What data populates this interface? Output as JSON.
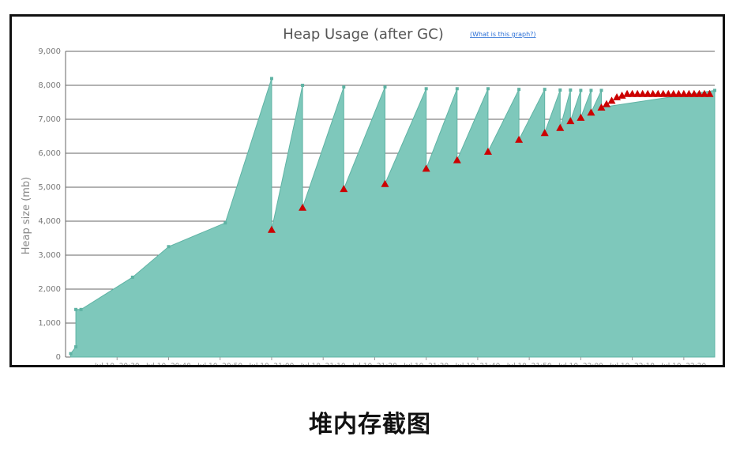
{
  "caption": "堆内存截图",
  "colors": {
    "area_fill": "#7ec8bb",
    "area_stroke": "#5fb3a4",
    "marker": "#cc0000",
    "grid": "#666666"
  },
  "chart_data": {
    "type": "area",
    "title": "Heap Usage (after GC)",
    "help_link": "(What is this graph?)",
    "xlabel": "",
    "ylabel": "Heap size (mb)",
    "ylim": [
      0,
      9000
    ],
    "yticks": [
      "0",
      "1,000",
      "2,000",
      "3,000",
      "4,000",
      "5,000",
      "6,000",
      "7,000",
      "8,000",
      "9,000"
    ],
    "xlim": [
      "20:20",
      "22:26"
    ],
    "xticks": [
      "Jul 10, 20:30",
      "Jul 10, 20:40",
      "Jul 10, 20:50",
      "Jul 10, 21:00",
      "Jul 10, 21:10",
      "Jul 10, 21:20",
      "Jul 10, 21:30",
      "Jul 10, 21:40",
      "Jul 10, 21:50",
      "Jul 10, 22:00",
      "Jul 10, 22:10",
      "Jul 10, 22:20"
    ],
    "grid": true,
    "legend": "none",
    "series": [
      {
        "type": "area",
        "x": [
          "20:21",
          "20:22",
          "20:22",
          "20:23",
          "20:33",
          "20:40",
          "20:51",
          "21:00",
          "21:00",
          "21:06",
          "21:06",
          "21:14",
          "21:14",
          "21:22",
          "21:22",
          "21:30",
          "21:30",
          "21:36",
          "21:36",
          "21:42",
          "21:42",
          "21:48",
          "21:48",
          "21:53",
          "21:53",
          "21:56",
          "21:56",
          "21:58",
          "21:58",
          "22:00",
          "22:00",
          "22:02",
          "22:02",
          "22:04",
          "22:04",
          "22:26"
        ],
        "y": [
          100,
          300,
          1400,
          1400,
          2350,
          3250,
          3950,
          8200,
          3750,
          8000,
          4400,
          7950,
          4950,
          7950,
          5100,
          7900,
          5550,
          7900,
          5800,
          7900,
          6050,
          7880,
          6400,
          7880,
          6600,
          7860,
          6750,
          7860,
          6950,
          7850,
          7050,
          7850,
          7200,
          7850,
          7350,
          7850
        ]
      },
      {
        "type": "scatter",
        "marker": "triangle",
        "x": [
          "21:00",
          "21:06",
          "21:14",
          "21:22",
          "21:30",
          "21:36",
          "21:42",
          "21:48",
          "21:53",
          "21:56",
          "21:58",
          "22:00",
          "22:02",
          "22:04",
          "22:05",
          "22:06",
          "22:07",
          "22:08",
          "22:09",
          "22:10",
          "22:11",
          "22:12",
          "22:13",
          "22:14",
          "22:15",
          "22:16",
          "22:17",
          "22:18",
          "22:19",
          "22:20",
          "22:21",
          "22:22",
          "22:23",
          "22:24",
          "22:25"
        ],
        "y": [
          3750,
          4400,
          4950,
          5100,
          5550,
          5800,
          6050,
          6400,
          6600,
          6750,
          6950,
          7050,
          7200,
          7350,
          7450,
          7550,
          7650,
          7700,
          7750,
          7750,
          7750,
          7750,
          7750,
          7750,
          7750,
          7750,
          7750,
          7750,
          7750,
          7750,
          7750,
          7750,
          7750,
          7750,
          7750
        ]
      }
    ]
  }
}
